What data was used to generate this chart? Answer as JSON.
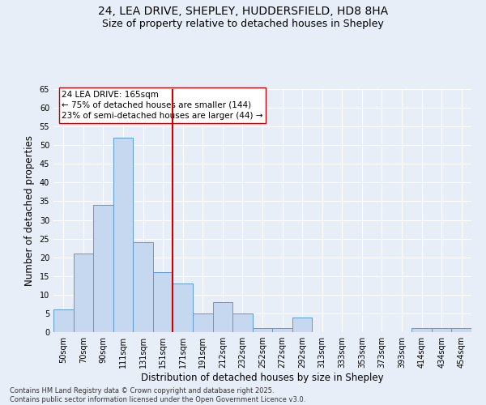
{
  "title_line1": "24, LEA DRIVE, SHEPLEY, HUDDERSFIELD, HD8 8HA",
  "title_line2": "Size of property relative to detached houses in Shepley",
  "xlabel": "Distribution of detached houses by size in Shepley",
  "ylabel": "Number of detached properties",
  "footer": "Contains HM Land Registry data © Crown copyright and database right 2025.\nContains public sector information licensed under the Open Government Licence v3.0.",
  "categories": [
    "50sqm",
    "70sqm",
    "90sqm",
    "111sqm",
    "131sqm",
    "151sqm",
    "171sqm",
    "191sqm",
    "212sqm",
    "232sqm",
    "252sqm",
    "272sqm",
    "292sqm",
    "313sqm",
    "333sqm",
    "353sqm",
    "373sqm",
    "393sqm",
    "414sqm",
    "434sqm",
    "454sqm"
  ],
  "values": [
    6,
    21,
    34,
    52,
    24,
    16,
    13,
    5,
    8,
    5,
    1,
    1,
    4,
    0,
    0,
    0,
    0,
    0,
    1,
    1,
    1
  ],
  "bar_color": "#c5d8f0",
  "bar_edge_color": "#5b9bd5",
  "vline_x": 5.5,
  "vline_color": "#cc0000",
  "annotation_text": "24 LEA DRIVE: 165sqm\n← 75% of detached houses are smaller (144)\n23% of semi-detached houses are larger (44) →",
  "annotation_box_color": "#ffffff",
  "annotation_box_edge_color": "#cc0000",
  "ylim": [
    0,
    65
  ],
  "yticks": [
    0,
    5,
    10,
    15,
    20,
    25,
    30,
    35,
    40,
    45,
    50,
    55,
    60,
    65
  ],
  "background_color": "#e8eef8",
  "plot_background_color": "#e8eef8",
  "grid_color": "#ffffff",
  "title_fontsize": 10,
  "subtitle_fontsize": 9,
  "axis_label_fontsize": 8.5,
  "tick_fontsize": 7,
  "annotation_fontsize": 7.5,
  "footer_fontsize": 6
}
